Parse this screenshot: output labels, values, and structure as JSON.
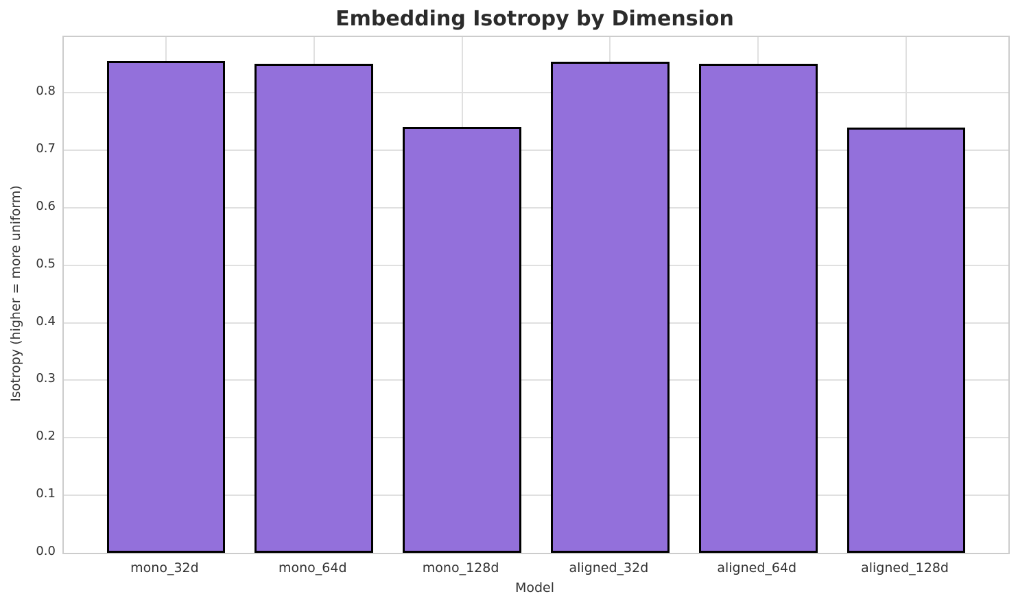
{
  "chart_data": {
    "type": "bar",
    "title": "Embedding Isotropy by Dimension",
    "xlabel": "Model",
    "ylabel": "Isotropy (higher = more uniform)",
    "categories": [
      "mono_32d",
      "mono_64d",
      "mono_128d",
      "aligned_32d",
      "aligned_64d",
      "aligned_128d"
    ],
    "values": [
      0.855,
      0.851,
      0.741,
      0.854,
      0.851,
      0.74
    ],
    "ytick_labels": [
      "0.0",
      "0.1",
      "0.2",
      "0.3",
      "0.4",
      "0.5",
      "0.6",
      "0.7",
      "0.8"
    ],
    "yticks": [
      0.0,
      0.1,
      0.2,
      0.3,
      0.4,
      0.5,
      0.6,
      0.7,
      0.8
    ],
    "ylim": [
      0,
      0.897
    ],
    "xlim": [
      -0.69,
      5.69
    ],
    "bar_width": 0.8,
    "grid": true,
    "legend": "none",
    "colors": {
      "bar_fill": "#9370DB",
      "bar_edge": "#000000",
      "grid_line": "#e0e0e0",
      "spine": "#cccccc",
      "tick_text": "#333333",
      "axis_label_text": "#333333",
      "title_text": "#2b2b2b"
    }
  }
}
